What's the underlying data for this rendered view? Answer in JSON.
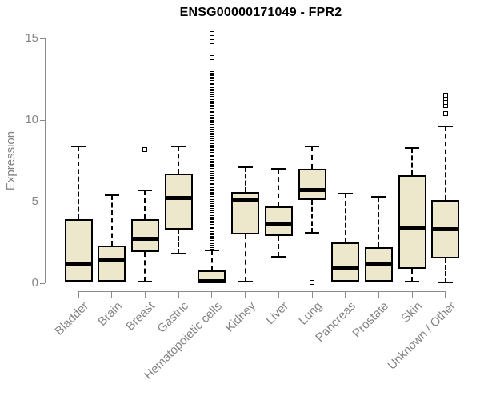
{
  "chart_data": {
    "type": "boxplot",
    "title": "ENSG00000171049 - FPR2",
    "ylabel": "Expression",
    "xlabel": "",
    "ylim": [
      0,
      15
    ],
    "yticks": [
      0,
      5,
      10,
      15
    ],
    "grid": false,
    "legend": "none",
    "categories": [
      "Bladder",
      "Brain",
      "Breast",
      "Gastric",
      "Hematopoietic cells",
      "Kidney",
      "Liver",
      "Lung",
      "Pancreas",
      "Prostate",
      "Skin",
      "Unknown / Other"
    ],
    "boxes": [
      {
        "category": "Bladder",
        "whisker_low": 0.1,
        "q1": 0.1,
        "median": 1.2,
        "q3": 3.9,
        "whisker_high": 8.4,
        "outliers": []
      },
      {
        "category": "Brain",
        "whisker_low": 0.1,
        "q1": 0.1,
        "median": 1.4,
        "q3": 2.3,
        "whisker_high": 5.4,
        "outliers": []
      },
      {
        "category": "Breast",
        "whisker_low": 0.1,
        "q1": 1.9,
        "median": 2.7,
        "q3": 3.9,
        "whisker_high": 5.7,
        "outliers": [
          8.2
        ]
      },
      {
        "category": "Gastric",
        "whisker_low": 1.8,
        "q1": 3.3,
        "median": 5.2,
        "q3": 6.7,
        "whisker_high": 8.4,
        "outliers": []
      },
      {
        "category": "Hematopoietic cells",
        "whisker_low": 0.0,
        "q1": 0.0,
        "median": 0.1,
        "q3": 0.8,
        "whisker_high": 2.0,
        "outliers": [
          13.8,
          14.8,
          15.3
        ],
        "outlier_band": {
          "min": 2.2,
          "max": 13.2
        }
      },
      {
        "category": "Kidney",
        "whisker_low": 0.1,
        "q1": 3.0,
        "median": 5.1,
        "q3": 5.6,
        "whisker_high": 7.1,
        "outliers": []
      },
      {
        "category": "Liver",
        "whisker_low": 1.6,
        "q1": 2.9,
        "median": 3.6,
        "q3": 4.7,
        "whisker_high": 7.0,
        "outliers": []
      },
      {
        "category": "Lung",
        "whisker_low": 3.1,
        "q1": 5.1,
        "median": 5.7,
        "q3": 7.0,
        "whisker_high": 8.4,
        "outliers": [
          0.05
        ]
      },
      {
        "category": "Pancreas",
        "whisker_low": 0.1,
        "q1": 0.1,
        "median": 0.9,
        "q3": 2.5,
        "whisker_high": 5.5,
        "outliers": []
      },
      {
        "category": "Prostate",
        "whisker_low": 0.1,
        "q1": 0.1,
        "median": 1.2,
        "q3": 2.2,
        "whisker_high": 5.3,
        "outliers": []
      },
      {
        "category": "Skin",
        "whisker_low": 0.1,
        "q1": 0.9,
        "median": 3.4,
        "q3": 6.6,
        "whisker_high": 8.3,
        "outliers": []
      },
      {
        "category": "Unknown / Other",
        "whisker_low": 0.05,
        "q1": 1.5,
        "median": 3.3,
        "q3": 5.1,
        "whisker_high": 9.6,
        "outliers": [
          10.4,
          10.9,
          11.1,
          11.3,
          11.5
        ]
      }
    ],
    "colors": {
      "box_fill": "#EDE8CC",
      "box_border": "#000000",
      "median": "#000000",
      "whisker": "#000000",
      "outlier_border": "#000000",
      "axis": "#8A8A8A",
      "tick_label": "#848484",
      "title": "#000000",
      "background": "#FFFFFF"
    }
  }
}
